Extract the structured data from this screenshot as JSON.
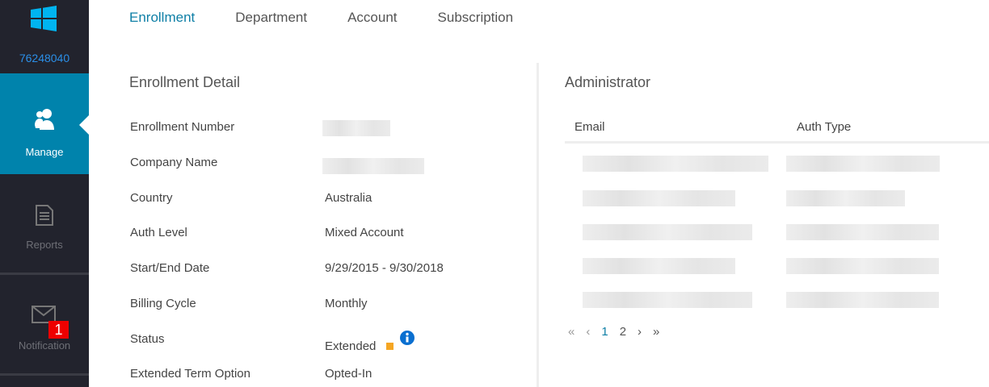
{
  "sidebar": {
    "account_id": "76248040",
    "items": [
      {
        "label": "Manage",
        "icon": "users-icon",
        "active": true
      },
      {
        "label": "Reports",
        "icon": "document-icon"
      },
      {
        "label": "Notification",
        "icon": "mail-icon",
        "badge": "1"
      }
    ]
  },
  "tabs": [
    {
      "label": "Enrollment",
      "active": true
    },
    {
      "label": "Department"
    },
    {
      "label": "Account"
    },
    {
      "label": "Subscription"
    }
  ],
  "enrollment": {
    "title": "Enrollment Detail",
    "rows": [
      {
        "label": "Enrollment Number",
        "value": ""
      },
      {
        "label": "Company Name",
        "value": ""
      },
      {
        "label": "Country",
        "value": "Australia"
      },
      {
        "label": "Auth Level",
        "value": "Mixed Account"
      },
      {
        "label": "Start/End Date",
        "value": "9/29/2015 - 9/30/2018"
      },
      {
        "label": "Billing Cycle",
        "value": "Monthly"
      },
      {
        "label": "Status",
        "value": "Extended"
      },
      {
        "label": "Extended Term Option",
        "value": "Opted-In"
      }
    ],
    "status_color": "#f5a623"
  },
  "administrator": {
    "title": "Administrator",
    "columns": [
      "Email",
      "Auth Type"
    ],
    "pager": {
      "first": "«",
      "prev": "‹",
      "pages": [
        "1",
        "2"
      ],
      "current": "1",
      "next": "›",
      "last": "»"
    }
  }
}
